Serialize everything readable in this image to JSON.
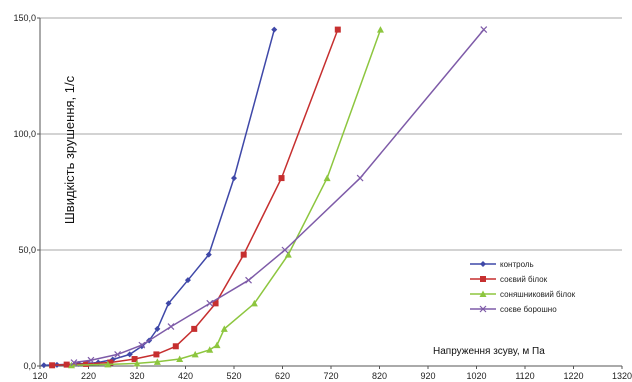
{
  "chart_data": {
    "type": "line",
    "title": "",
    "xlabel": "Напруження зсуву, м Па",
    "ylabel": "Швидкість зрушення, 1/с",
    "xlim": [
      120,
      1320
    ],
    "ylim": [
      0,
      150
    ],
    "x_ticks": [
      120,
      220,
      320,
      420,
      520,
      620,
      720,
      820,
      920,
      1020,
      1120,
      1220,
      1320
    ],
    "y_ticks": [
      0,
      50,
      100,
      150
    ],
    "y_tick_labels": [
      "0,0",
      "50,0",
      "100,0",
      "150,0"
    ],
    "grid": "horizontal",
    "legend_position": "bottom-right",
    "series": [
      {
        "name": "контроль",
        "color": "#3F48A8",
        "marker": "diamond",
        "points": [
          [
            128,
            0.3
          ],
          [
            155,
            0.5
          ],
          [
            200,
            0.9
          ],
          [
            240,
            1.5
          ],
          [
            270,
            2.8
          ],
          [
            305,
            5.0
          ],
          [
            330,
            8.5
          ],
          [
            345,
            11
          ],
          [
            362,
            16
          ],
          [
            385,
            27
          ],
          [
            425,
            37
          ],
          [
            468,
            48
          ],
          [
            520,
            81
          ],
          [
            603,
            145
          ]
        ]
      },
      {
        "name": "соєвий білок",
        "color": "#C62F2F",
        "marker": "square",
        "points": [
          [
            145,
            0.3
          ],
          [
            175,
            0.6
          ],
          [
            215,
            0.9
          ],
          [
            265,
            1.5
          ],
          [
            315,
            3.0
          ],
          [
            360,
            5.0
          ],
          [
            400,
            8.5
          ],
          [
            438,
            16
          ],
          [
            482,
            27
          ],
          [
            540,
            48
          ],
          [
            618,
            81
          ],
          [
            734,
            145
          ]
        ]
      },
      {
        "name": "соняшниковий білок",
        "color": "#8DC63F",
        "marker": "triangle",
        "points": [
          [
            185,
            0.3
          ],
          [
            260,
            0.7
          ],
          [
            320,
            1.1
          ],
          [
            362,
            1.8
          ],
          [
            408,
            3.0
          ],
          [
            440,
            5.0
          ],
          [
            470,
            7.0
          ],
          [
            485,
            9.0
          ],
          [
            500,
            16
          ],
          [
            562,
            27
          ],
          [
            632,
            48
          ],
          [
            712,
            81
          ],
          [
            822,
            145
          ]
        ]
      },
      {
        "name": "соєве борошно",
        "color": "#7E5BA8",
        "marker": "x",
        "points": [
          [
            190,
            1.5
          ],
          [
            225,
            2.5
          ],
          [
            280,
            5.0
          ],
          [
            330,
            9.0
          ],
          [
            390,
            17
          ],
          [
            470,
            27
          ],
          [
            550,
            37
          ],
          [
            625,
            50
          ],
          [
            780,
            81
          ],
          [
            1035,
            145
          ]
        ]
      }
    ]
  }
}
